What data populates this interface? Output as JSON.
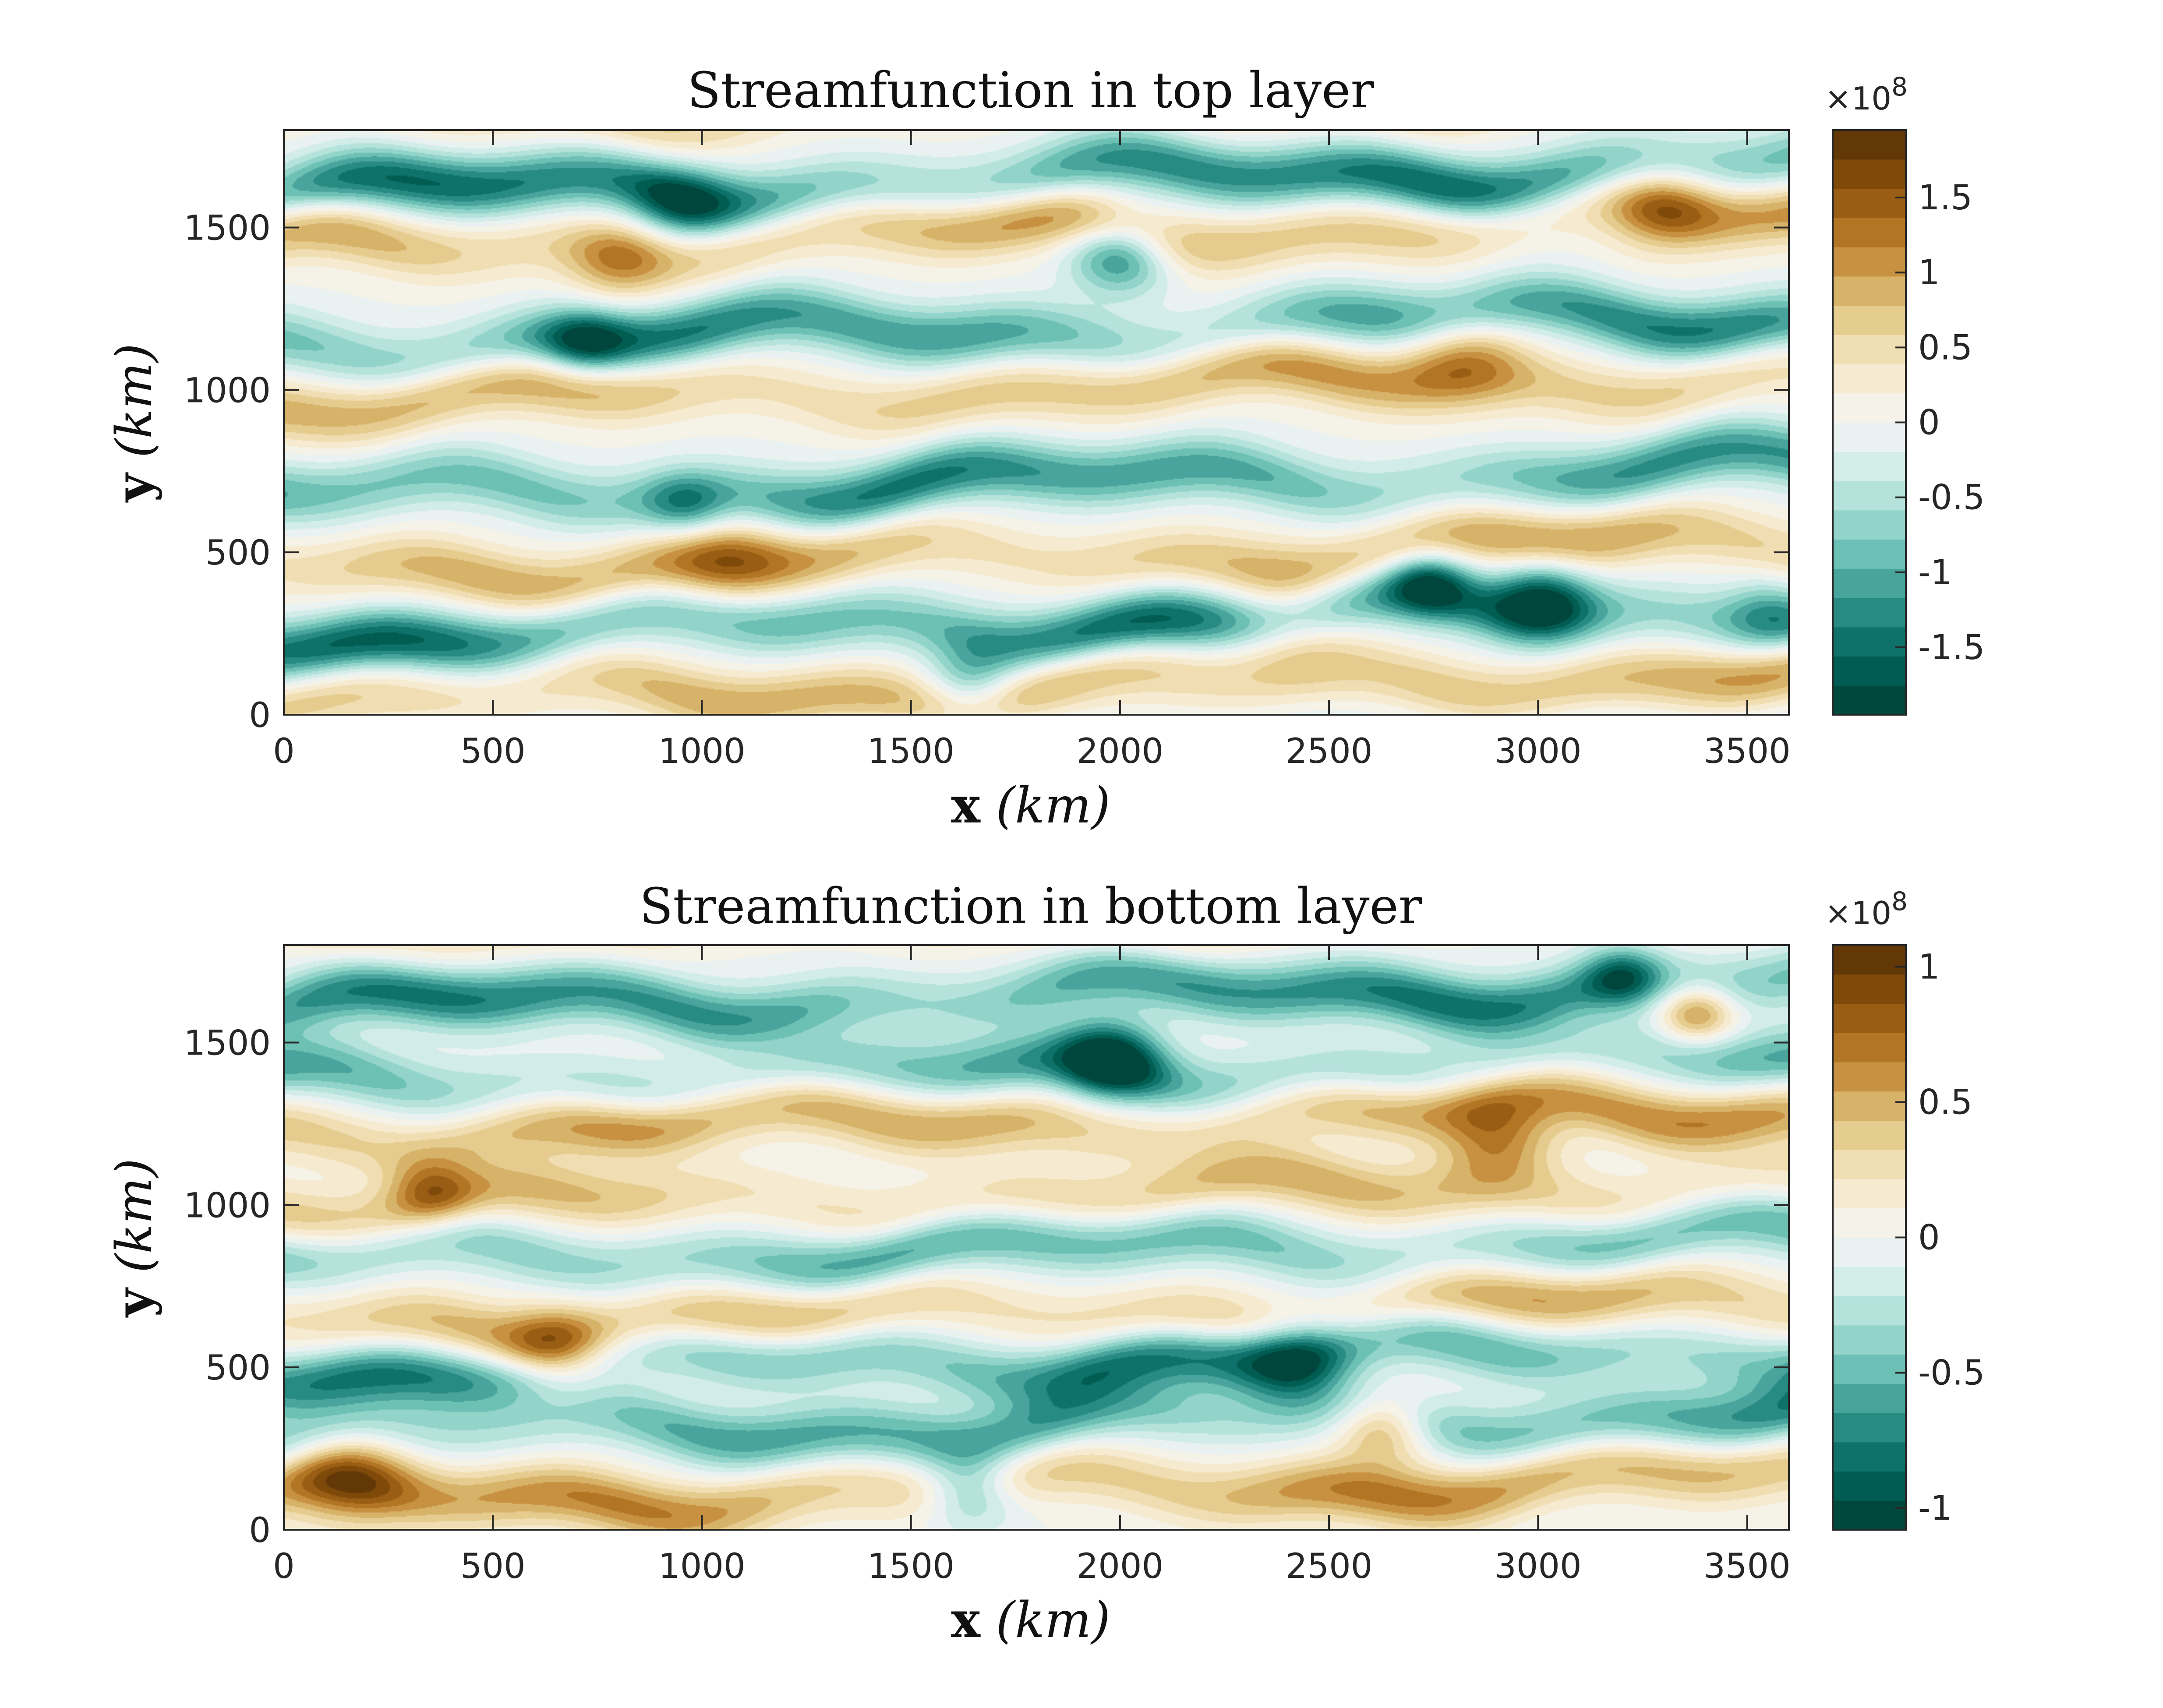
{
  "figure": {
    "colormap": [
      "#003c30",
      "#01665e",
      "#35978f",
      "#80cdc1",
      "#c7eae5",
      "#f5f5f5",
      "#f6e8c3",
      "#dfc27d",
      "#bf812d",
      "#8c510a",
      "#543005"
    ]
  },
  "chart_data": [
    {
      "type": "heatmap",
      "title": "Streamfunction in top layer",
      "xlabel": {
        "symbol": "x",
        "unit": "(km)"
      },
      "ylabel": {
        "symbol": "y",
        "unit": "(km)"
      },
      "xlim": [
        0,
        3600
      ],
      "ylim": [
        0,
        1800
      ],
      "xticks": [
        0,
        500,
        1000,
        1500,
        2000,
        2500,
        3000,
        3500
      ],
      "xtick_labels": [
        "0",
        "500",
        "1000",
        "1500",
        "2000",
        "2500",
        "3000",
        "3500"
      ],
      "yticks": [
        0,
        500,
        1000,
        1500
      ],
      "ytick_labels": [
        "0",
        "500",
        "1000",
        "1500"
      ],
      "colorbar": {
        "multiplier": "×10",
        "exponent": "8",
        "range": [
          -1.95,
          1.95
        ],
        "ticks": [
          -1.5,
          -1,
          -0.5,
          0,
          0.5,
          1,
          1.5
        ],
        "tick_labels": [
          "-1.5",
          "-1",
          "-0.5",
          "0",
          "0.5",
          "1",
          "1.5"
        ],
        "levels": 20
      },
      "field": {
        "background_tilt": 0.1,
        "bands": [
          {
            "y": 1690,
            "amp": -1.45
          },
          {
            "y": 1530,
            "amp": 1.0
          },
          {
            "y": 1230,
            "amp": -1.3
          },
          {
            "y": 1050,
            "amp": 0.95
          },
          {
            "y": 760,
            "amp": -1.3
          },
          {
            "y": 530,
            "amp": 0.95
          },
          {
            "y": 330,
            "amp": -1.45
          },
          {
            "y": 130,
            "amp": 0.95
          },
          {
            "y": 1940,
            "amp": 0.6
          },
          {
            "y": -80,
            "amp": -0.6
          }
        ],
        "eddies": [
          {
            "x": 2000,
            "y": 1420,
            "amp": -1.4,
            "r": 120
          },
          {
            "x": 3010,
            "y": 360,
            "amp": -1.5,
            "r": 120
          },
          {
            "x": 2740,
            "y": 410,
            "amp": -1.2,
            "r": 100
          },
          {
            "x": 950,
            "y": 1560,
            "amp": -0.9,
            "r": 120
          },
          {
            "x": 720,
            "y": 1140,
            "amp": -0.9,
            "r": 100
          },
          {
            "x": 960,
            "y": 640,
            "amp": -0.9,
            "r": 100
          },
          {
            "x": 3300,
            "y": 1560,
            "amp": 1.0,
            "r": 130
          },
          {
            "x": 2820,
            "y": 1120,
            "amp": 0.9,
            "r": 150
          },
          {
            "x": 800,
            "y": 1390,
            "amp": 0.8,
            "r": 120
          },
          {
            "x": 1050,
            "y": 460,
            "amp": 0.7,
            "r": 150
          },
          {
            "x": 1640,
            "y": 100,
            "amp": -1.0,
            "r": 110
          },
          {
            "x": 3550,
            "y": 330,
            "amp": -0.6,
            "r": 100
          },
          {
            "x": 2400,
            "y": 280,
            "amp": 0.8,
            "r": 160
          }
        ]
      }
    },
    {
      "type": "heatmap",
      "title": "Streamfunction in bottom layer",
      "xlabel": {
        "symbol": "x",
        "unit": "(km)"
      },
      "ylabel": {
        "symbol": "y",
        "unit": "(km)"
      },
      "xlim": [
        0,
        3600
      ],
      "ylim": [
        0,
        1800
      ],
      "xticks": [
        0,
        500,
        1000,
        1500,
        2000,
        2500,
        3000,
        3500
      ],
      "xtick_labels": [
        "0",
        "500",
        "1000",
        "1500",
        "2000",
        "2500",
        "3000",
        "3500"
      ],
      "yticks": [
        0,
        500,
        1000,
        1500
      ],
      "ytick_labels": [
        "0",
        "500",
        "1000",
        "1500"
      ],
      "colorbar": {
        "multiplier": "×10",
        "exponent": "8",
        "range": [
          -1.08,
          1.08
        ],
        "ticks": [
          -1,
          -0.5,
          0,
          0.5,
          1
        ],
        "tick_labels": [
          "-1",
          "-0.5",
          "0",
          "0.5",
          "1"
        ],
        "levels": 20
      },
      "field": {
        "background_tilt": 0.08,
        "bands": [
          {
            "y": 1680,
            "amp": -0.75
          },
          {
            "y": 1440,
            "amp": -0.55
          },
          {
            "y": 1300,
            "amp": 0.6
          },
          {
            "y": 1060,
            "amp": 0.45
          },
          {
            "y": 900,
            "amp": -0.6
          },
          {
            "y": 700,
            "amp": 0.5
          },
          {
            "y": 560,
            "amp": -0.7
          },
          {
            "y": 360,
            "amp": -0.6
          },
          {
            "y": 160,
            "amp": 0.6
          },
          {
            "y": 1920,
            "amp": 0.3
          }
        ],
        "eddies": [
          {
            "x": 1980,
            "y": 1450,
            "amp": -0.9,
            "r": 120
          },
          {
            "x": 2420,
            "y": 510,
            "amp": -0.7,
            "r": 130
          },
          {
            "x": 3380,
            "y": 1590,
            "amp": 0.7,
            "r": 90
          },
          {
            "x": 3200,
            "y": 1700,
            "amp": -0.6,
            "r": 90
          },
          {
            "x": 2900,
            "y": 1200,
            "amp": 0.6,
            "r": 140
          },
          {
            "x": 650,
            "y": 560,
            "amp": 0.6,
            "r": 120
          },
          {
            "x": 160,
            "y": 170,
            "amp": 0.6,
            "r": 150
          },
          {
            "x": 1640,
            "y": 120,
            "amp": -0.6,
            "r": 110
          },
          {
            "x": 2630,
            "y": 320,
            "amp": 0.6,
            "r": 110
          },
          {
            "x": 350,
            "y": 1050,
            "amp": 0.5,
            "r": 100
          }
        ]
      }
    }
  ]
}
